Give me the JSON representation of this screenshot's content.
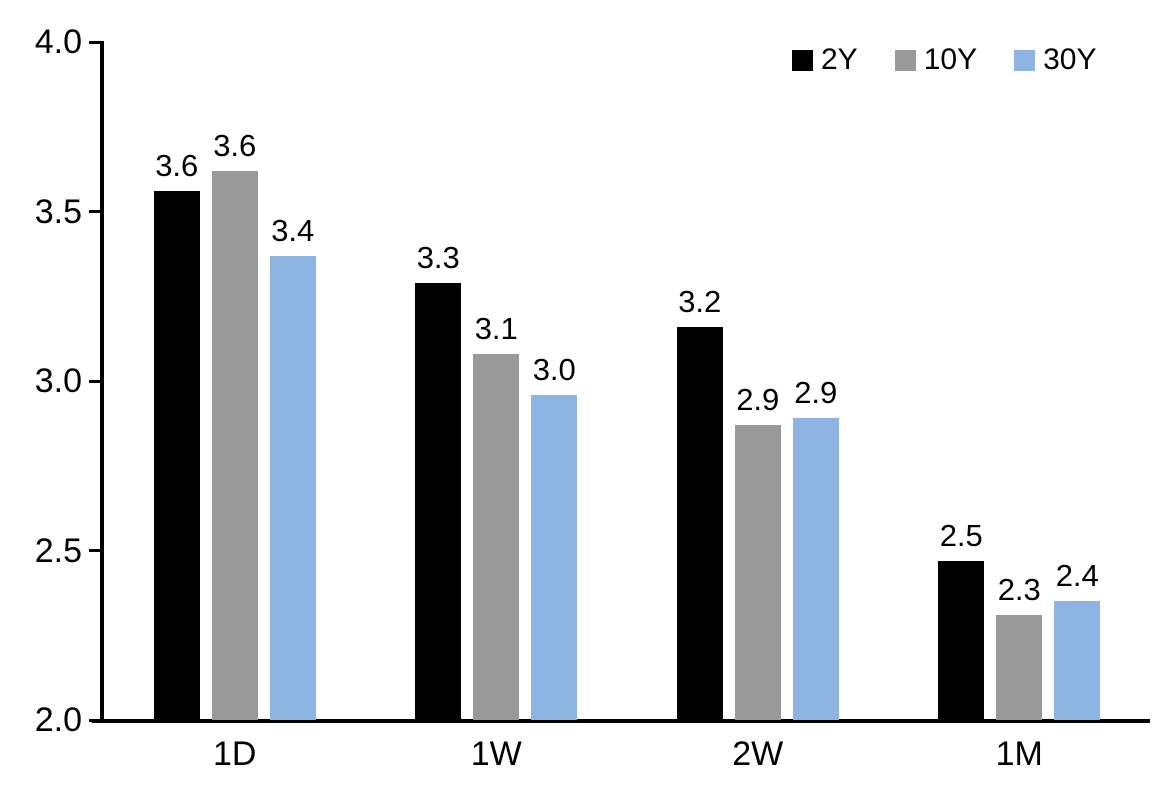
{
  "chart_data": {
    "type": "bar",
    "title": "",
    "categories": [
      "1D",
      "1W",
      "2W",
      "1M"
    ],
    "series": [
      {
        "name": "2Y",
        "color": "#000000",
        "values": [
          3.56,
          3.29,
          3.16,
          2.47
        ],
        "labels": [
          "3.6",
          "3.3",
          "3.2",
          "2.5"
        ]
      },
      {
        "name": "10Y",
        "color": "#999999",
        "values": [
          3.62,
          3.08,
          2.87,
          2.31
        ],
        "labels": [
          "3.6",
          "3.1",
          "2.9",
          "2.3"
        ]
      },
      {
        "name": "30Y",
        "color": "#8EB4E3",
        "values": [
          3.37,
          2.96,
          2.89,
          2.35
        ],
        "labels": [
          "3.4",
          "3.0",
          "2.9",
          "2.4"
        ]
      }
    ],
    "xlabel": "",
    "ylabel": "",
    "ylim": [
      2.0,
      4.0
    ],
    "ytick_labels": [
      "2.0",
      "2.5",
      "3.0",
      "3.5",
      "4.0"
    ],
    "grid": false,
    "legend_position": "top-right",
    "axis_color": "#000000",
    "background_color": "#FFFFFF",
    "text_color": "#000000"
  }
}
